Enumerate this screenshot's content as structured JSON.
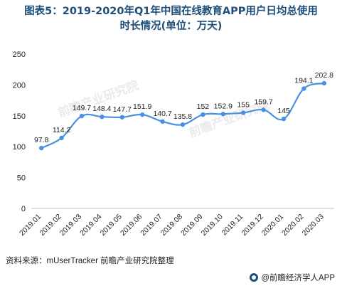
{
  "title": {
    "line1": "图表5：2019-2020年Q1年中国在线教育APP用户日均总使用",
    "line2": "时长情况(单位：万天)"
  },
  "source": "资料来源：mUserTracker 前瞻产业研究院整理",
  "brand": "@前瞻经济学人APP",
  "watermark": "前瞻产业研究院",
  "colors": {
    "line": "#4a90e2",
    "axis": "#bfbfbf",
    "text": "#222222",
    "title": "#1f4e79"
  },
  "chart_data": {
    "type": "line",
    "categories": [
      "2019.01",
      "2019.02",
      "2019.03",
      "2019.04",
      "2019.05",
      "2019.06",
      "2019.07",
      "2019.08",
      "2019.09",
      "2019.10",
      "2019.11",
      "2019.12",
      "2020.01",
      "2020.02",
      "2020.03"
    ],
    "values": [
      97.8,
      114.2,
      149.7,
      148.4,
      147.7,
      151.9,
      140.7,
      135.8,
      152,
      152.9,
      155,
      159.7,
      145,
      194.1,
      202.8
    ],
    "labels": [
      "97.8",
      "114.2",
      "149.7",
      "148.4",
      "147.7",
      "151.9",
      "140.7",
      "135.8",
      "152",
      "152.9",
      "155",
      "159.7",
      "145",
      "194.1",
      "202.8"
    ],
    "ylim": [
      0,
      250
    ],
    "yticks": [
      0,
      50,
      100,
      150,
      200,
      250
    ],
    "grid": false,
    "xlabel": "",
    "ylabel": ""
  }
}
